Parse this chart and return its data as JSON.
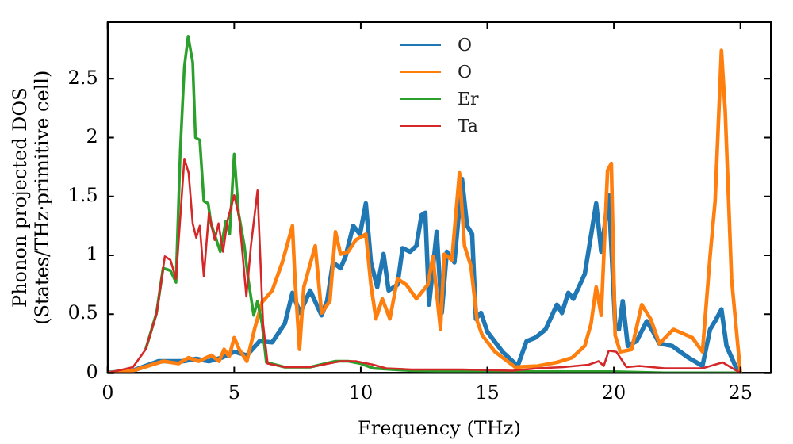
{
  "chart_data": {
    "type": "line",
    "xlabel": "Frequency (THz)",
    "ylabel": "Phonon projected DOS\n(States/THz·primitive cell)",
    "xlim": [
      0,
      26.2
    ],
    "ylim": [
      0,
      2.98
    ],
    "xticks": [
      0,
      5,
      10,
      15,
      20,
      25
    ],
    "yticks": [
      0,
      0.5,
      1,
      1.5,
      2,
      2.5
    ],
    "grid": false,
    "legend": "top",
    "marker": "none",
    "line_style": "solid",
    "series": [
      {
        "name": "O",
        "color": "#1f77b4",
        "x": [
          0,
          1,
          2,
          2.5,
          3,
          3.5,
          4,
          4.5,
          5,
          5.5,
          6,
          6.5,
          7,
          7.3,
          7.6,
          8,
          8.45,
          8.67,
          8.9,
          9.2,
          9.4,
          9.7,
          9.97,
          10.2,
          10.4,
          10.65,
          10.9,
          11.1,
          11.45,
          11.65,
          11.95,
          12.2,
          12.4,
          12.55,
          12.7,
          13,
          13.2,
          13.4,
          13.7,
          14,
          14.2,
          14.4,
          14.55,
          14.75,
          15,
          15.6,
          16.2,
          16.55,
          16.9,
          17.3,
          17.75,
          17.95,
          18.2,
          18.4,
          18.85,
          19.3,
          19.5,
          19.8,
          20.05,
          20.2,
          20.35,
          20.55,
          20.9,
          21.3,
          21.55,
          21.8,
          22.3,
          22.95,
          23.5,
          23.8,
          24,
          24.25,
          24.45,
          24.8,
          25
        ],
        "values": [
          0,
          0.02,
          0.1,
          0.1,
          0.1,
          0.12,
          0.1,
          0.13,
          0.18,
          0.15,
          0.27,
          0.26,
          0.42,
          0.68,
          0.51,
          0.7,
          0.49,
          0.61,
          0.94,
          0.89,
          0.99,
          1.25,
          1.18,
          1.44,
          0.94,
          0.73,
          1.01,
          0.7,
          0.75,
          1.06,
          1.03,
          1.08,
          1.34,
          1.36,
          0.58,
          1.2,
          0.51,
          1.03,
          0.94,
          1.65,
          1.25,
          1.18,
          0.46,
          0.51,
          0.35,
          0.18,
          0.06,
          0.27,
          0.3,
          0.37,
          0.58,
          0.51,
          0.68,
          0.63,
          0.84,
          1.44,
          1.03,
          1.51,
          0.42,
          0.37,
          0.61,
          0.23,
          0.27,
          0.44,
          0.35,
          0.25,
          0.23,
          0.13,
          0.06,
          0.37,
          0.44,
          0.54,
          0.23,
          0.06,
          0
        ]
      },
      {
        "name": "O",
        "color": "#ff7f0e",
        "x": [
          0,
          1,
          2.2,
          2.8,
          3.2,
          3.6,
          4.1,
          4.4,
          4.6,
          4.8,
          5,
          5.2,
          5.5,
          5.8,
          6.1,
          6.5,
          6.9,
          7.3,
          7.4,
          7.58,
          7.75,
          8.2,
          8.45,
          8.78,
          9,
          9.2,
          9.5,
          9.8,
          10.2,
          10.4,
          10.6,
          10.85,
          11.15,
          11.45,
          11.8,
          12.2,
          12.65,
          12.85,
          13.15,
          13.3,
          13.6,
          13.9,
          14.1,
          14.35,
          14.6,
          14.8,
          15.3,
          16.1,
          17,
          17.75,
          18.35,
          18.85,
          19.1,
          19.3,
          19.5,
          19.75,
          19.9,
          20.05,
          20.25,
          20.7,
          21.1,
          21.45,
          21.8,
          22.35,
          23.1,
          23.5,
          23.8,
          24,
          24.25,
          24.4,
          24.65,
          25
        ],
        "values": [
          0,
          0.02,
          0.1,
          0.08,
          0.13,
          0.1,
          0.15,
          0.1,
          0.2,
          0.14,
          0.3,
          0.2,
          0.1,
          0.37,
          0.6,
          0.7,
          0.94,
          1.25,
          0.8,
          0.2,
          0.73,
          1.08,
          0.51,
          0.61,
          1.2,
          1.01,
          1.03,
          1.13,
          1.18,
          0.75,
          0.46,
          0.63,
          0.46,
          0.8,
          0.75,
          0.63,
          0.75,
          0.99,
          0.37,
          1.01,
          0.96,
          1.7,
          1.08,
          0.91,
          0.44,
          0.32,
          0.18,
          0.05,
          0.06,
          0.09,
          0.13,
          0.23,
          0.42,
          0.73,
          0.49,
          1.72,
          1.78,
          0.32,
          0.18,
          0.2,
          0.58,
          0.46,
          0.25,
          0.37,
          0.3,
          0.18,
          0.99,
          1.46,
          2.74,
          2.22,
          0.8,
          0
        ]
      },
      {
        "name": "Er",
        "color": "#2ca02c",
        "x": [
          1.5,
          1.93,
          2.19,
          2.48,
          2.7,
          2.87,
          3.03,
          3.18,
          3.36,
          3.47,
          3.64,
          3.8,
          3.97,
          4.08,
          4.45,
          4.67,
          4.82,
          5,
          5.17,
          5.4,
          5.55,
          5.77,
          5.92,
          6.1,
          6.27,
          7,
          8,
          9,
          9.5,
          10,
          10.5,
          12,
          14,
          16,
          18,
          20,
          22,
          25
        ],
        "values": [
          0.2,
          0.51,
          0.89,
          0.87,
          0.77,
          1.89,
          2.6,
          2.86,
          2.64,
          2,
          1.98,
          1.46,
          1.44,
          1.27,
          1.03,
          1.29,
          1.18,
          1.86,
          1.36,
          1.08,
          0.8,
          0.49,
          0.61,
          0.42,
          0.09,
          0.05,
          0.05,
          0.1,
          0.1,
          0.08,
          0.04,
          0.02,
          0.01,
          0.01,
          0.01,
          0.01,
          0,
          0
        ]
      },
      {
        "name": "Ta",
        "color": "#d62728",
        "x": [
          0,
          1,
          1.5,
          1.93,
          2.26,
          2.48,
          2.7,
          3.03,
          3.2,
          3.36,
          3.5,
          3.64,
          3.8,
          4,
          4.23,
          4.38,
          4.56,
          4.73,
          5,
          5.2,
          5.48,
          5.66,
          5.92,
          6.14,
          6.32,
          7,
          8,
          9.2,
          9.8,
          10.5,
          11,
          12,
          14,
          16,
          17,
          18,
          19,
          19.4,
          19.6,
          19.8,
          20.1,
          20.5,
          21,
          22,
          23.5,
          24.3,
          24.6,
          25
        ],
        "values": [
          0,
          0.05,
          0.2,
          0.5,
          0.99,
          0.96,
          0.8,
          1.82,
          1.7,
          1.27,
          1.15,
          1.25,
          0.82,
          1.36,
          1.13,
          1.27,
          1.03,
          1.29,
          1.51,
          1.32,
          0.65,
          1.08,
          1.55,
          0.42,
          0.08,
          0.05,
          0.05,
          0.1,
          0.1,
          0.07,
          0.04,
          0.03,
          0.03,
          0.02,
          0.04,
          0.05,
          0.07,
          0.1,
          0.06,
          0.19,
          0.18,
          0.05,
          0.06,
          0.04,
          0.04,
          0.09,
          0.05,
          0
        ]
      }
    ]
  }
}
